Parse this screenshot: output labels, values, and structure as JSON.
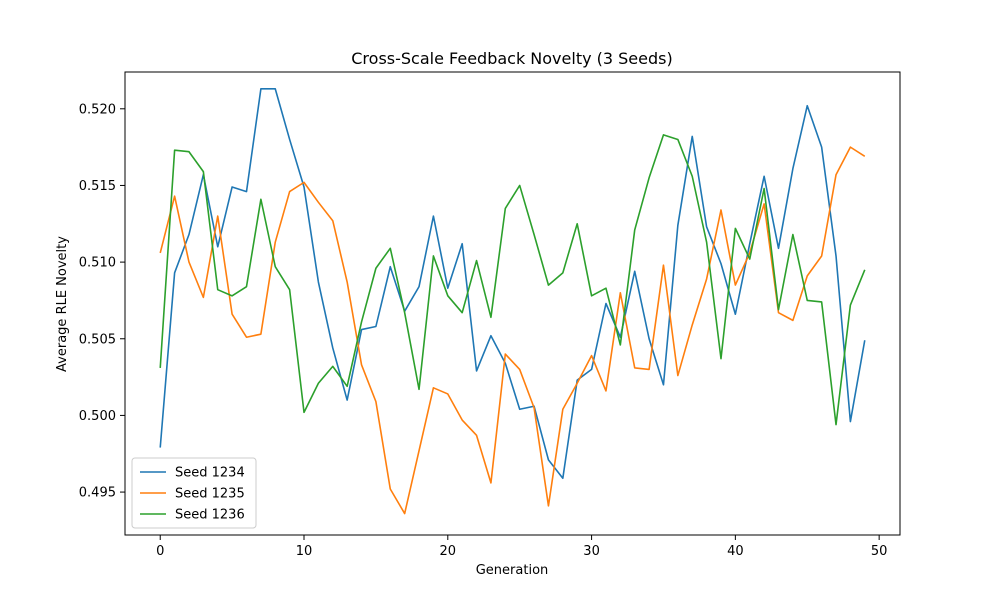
{
  "chart_data": {
    "type": "line",
    "title": "Cross-Scale Feedback Novelty (3 Seeds)",
    "xlabel": "Generation",
    "ylabel": "Average RLE Novelty",
    "xlim": [
      -2.45,
      51.45
    ],
    "ylim": [
      0.4922,
      0.5224
    ],
    "xticks": [
      0,
      10,
      20,
      30,
      40,
      50
    ],
    "xtick_labels": [
      "0",
      "10",
      "20",
      "30",
      "40",
      "50"
    ],
    "yticks": [
      0.495,
      0.5,
      0.505,
      0.51,
      0.515,
      0.52
    ],
    "ytick_labels": [
      "0.495",
      "0.500",
      "0.505",
      "0.510",
      "0.515",
      "0.520"
    ],
    "grid": false,
    "legend_position": "lower-left",
    "x": [
      0,
      1,
      2,
      3,
      4,
      5,
      6,
      7,
      8,
      9,
      10,
      11,
      12,
      13,
      14,
      15,
      16,
      17,
      18,
      19,
      20,
      21,
      22,
      23,
      24,
      25,
      26,
      27,
      28,
      29,
      30,
      31,
      32,
      33,
      34,
      35,
      36,
      37,
      38,
      39,
      40,
      41,
      42,
      43,
      44,
      45,
      46,
      47,
      48,
      49
    ],
    "series": [
      {
        "name": "Seed 1234",
        "color": "#1f77b4",
        "values": [
          0.4979,
          0.5093,
          0.5118,
          0.5157,
          0.511,
          0.5149,
          0.5146,
          0.5213,
          0.5213,
          0.518,
          0.5149,
          0.5087,
          0.5044,
          0.501,
          0.5056,
          0.5058,
          0.5097,
          0.5068,
          0.5084,
          0.513,
          0.5083,
          0.5112,
          0.5029,
          0.5052,
          0.5034,
          0.5004,
          0.5006,
          0.4971,
          0.4959,
          0.5023,
          0.503,
          0.5073,
          0.5051,
          0.5094,
          0.505,
          0.502,
          0.5124,
          0.5182,
          0.5123,
          0.5099,
          0.5066,
          0.5112,
          0.5156,
          0.5109,
          0.5161,
          0.5202,
          0.5175,
          0.5104,
          0.4996,
          0.5049
        ]
      },
      {
        "name": "Seed 1235",
        "color": "#ff7f0e",
        "values": [
          0.5106,
          0.5143,
          0.51,
          0.5077,
          0.513,
          0.5066,
          0.5051,
          0.5053,
          0.5113,
          0.5146,
          0.5152,
          0.5139,
          0.5127,
          0.5087,
          0.5033,
          0.5009,
          0.4952,
          0.4936,
          0.4977,
          0.5018,
          0.5014,
          0.4997,
          0.4987,
          0.4956,
          0.504,
          0.503,
          0.5005,
          0.4941,
          0.5004,
          0.5021,
          0.5039,
          0.5016,
          0.508,
          0.5031,
          0.503,
          0.5098,
          0.5026,
          0.5059,
          0.5089,
          0.5134,
          0.5085,
          0.5106,
          0.5138,
          0.5067,
          0.5062,
          0.5091,
          0.5104,
          0.5157,
          0.5175,
          0.5169
        ]
      },
      {
        "name": "Seed 1236",
        "color": "#2ca02c",
        "values": [
          0.5031,
          0.5173,
          0.5172,
          0.5159,
          0.5082,
          0.5078,
          0.5084,
          0.5141,
          0.5097,
          0.5082,
          0.5002,
          0.5021,
          0.5032,
          0.5019,
          0.5061,
          0.5096,
          0.5109,
          0.5067,
          0.5017,
          0.5104,
          0.5078,
          0.5067,
          0.5101,
          0.5064,
          0.5135,
          0.515,
          0.5118,
          0.5085,
          0.5093,
          0.5125,
          0.5078,
          0.5083,
          0.5046,
          0.5121,
          0.5155,
          0.5183,
          0.518,
          0.5156,
          0.5113,
          0.5037,
          0.5122,
          0.5102,
          0.5148,
          0.5069,
          0.5118,
          0.5075,
          0.5074,
          0.4994,
          0.5072,
          0.5095
        ]
      }
    ]
  }
}
